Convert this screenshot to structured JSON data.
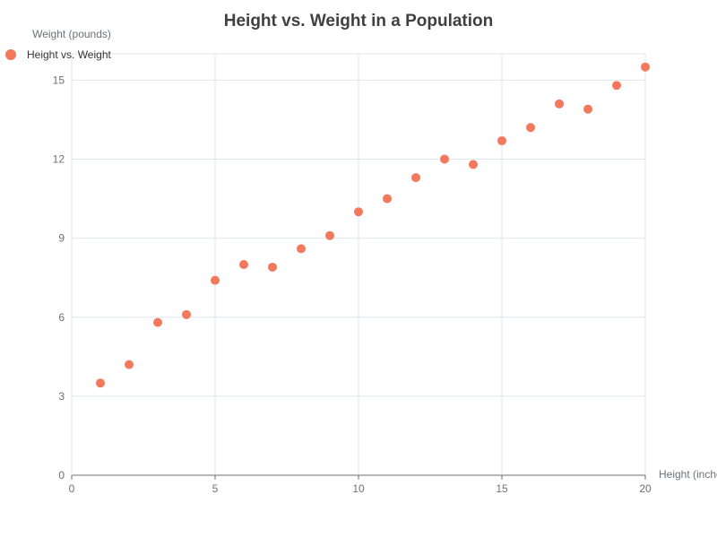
{
  "chart_data": {
    "type": "scatter",
    "title": "Height vs. Weight in a Population",
    "xlabel": "Height (inches)",
    "ylabel": "Weight (pounds)",
    "xlim": [
      0,
      20
    ],
    "ylim": [
      0,
      16
    ],
    "xticks": [
      0,
      5,
      10,
      15,
      20
    ],
    "yticks": [
      0,
      3,
      6,
      9,
      12,
      15
    ],
    "grid": true,
    "legend_position": "top-left",
    "series": [
      {
        "name": "Height vs. Weight",
        "color": "#f4785c",
        "points": [
          {
            "x": 1,
            "y": 3.5
          },
          {
            "x": 2,
            "y": 4.2
          },
          {
            "x": 3,
            "y": 5.8
          },
          {
            "x": 4,
            "y": 6.1
          },
          {
            "x": 5,
            "y": 7.4
          },
          {
            "x": 6,
            "y": 8.0
          },
          {
            "x": 7,
            "y": 7.9
          },
          {
            "x": 8,
            "y": 8.6
          },
          {
            "x": 9,
            "y": 9.1
          },
          {
            "x": 10,
            "y": 10.0
          },
          {
            "x": 11,
            "y": 10.5
          },
          {
            "x": 12,
            "y": 11.3
          },
          {
            "x": 13,
            "y": 12.0
          },
          {
            "x": 14,
            "y": 11.8
          },
          {
            "x": 15,
            "y": 12.7
          },
          {
            "x": 16,
            "y": 13.2
          },
          {
            "x": 17,
            "y": 14.1
          },
          {
            "x": 18,
            "y": 13.9
          },
          {
            "x": 19,
            "y": 14.8
          },
          {
            "x": 20,
            "y": 15.5
          }
        ]
      }
    ]
  }
}
